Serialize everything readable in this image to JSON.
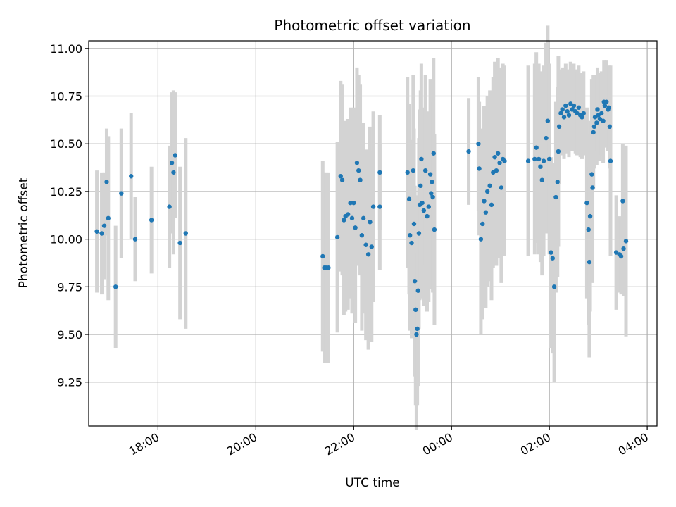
{
  "chart_data": {
    "type": "scatter",
    "title": "Photometric offset variation",
    "xlabel": "UTC time",
    "ylabel": "Photometric offset",
    "x_unit": "UTC clock time (hours past 00:00 of first day; values past 24 wrap)",
    "xlim": [
      "16:35",
      "04:12"
    ],
    "ylim": [
      9.02,
      11.04
    ],
    "x_ticks": [
      "18:00",
      "20:00",
      "22:00",
      "00:00",
      "02:00",
      "04:00"
    ],
    "y_ticks": [
      "9.25",
      "9.50",
      "9.75",
      "10.00",
      "10.25",
      "10.50",
      "10.75",
      "11.00"
    ],
    "grid": true,
    "colors": {
      "point": "#1f77b4",
      "errorbar": "#d3d3d3",
      "grid": "#b0b0b0"
    },
    "points": [
      [
        "16:45",
        10.04,
        0.32
      ],
      [
        "16:51",
        10.03,
        0.32
      ],
      [
        "16:54",
        10.07,
        0.28
      ],
      [
        "16:57",
        10.3,
        0.28
      ],
      [
        "16:59",
        10.11,
        0.43
      ],
      [
        "17:08",
        9.75,
        0.32
      ],
      [
        "17:15",
        10.24,
        0.34
      ],
      [
        "17:27",
        10.33,
        0.33
      ],
      [
        "17:32",
        10.0,
        0.22
      ],
      [
        "17:52",
        10.1,
        0.28
      ],
      [
        "18:14",
        10.17,
        0.32
      ],
      [
        "18:17",
        10.4,
        0.37
      ],
      [
        "18:19",
        10.35,
        0.43
      ],
      [
        "18:21",
        10.44,
        0.33
      ],
      [
        "18:27",
        9.98,
        0.4
      ],
      [
        "18:34",
        10.03,
        0.5
      ],
      [
        "21:22",
        9.91,
        0.5
      ],
      [
        "21:24",
        9.85,
        0.5
      ],
      [
        "21:26",
        9.85,
        0.5
      ],
      [
        "21:29",
        9.85,
        0.5
      ],
      [
        "21:40",
        10.01,
        0.5
      ],
      [
        "21:44",
        10.33,
        0.5
      ],
      [
        "21:46",
        10.31,
        0.5
      ],
      [
        "21:48",
        10.1,
        0.5
      ],
      [
        "21:50",
        10.12,
        0.5
      ],
      [
        "21:53",
        10.13,
        0.5
      ],
      [
        "21:56",
        10.19,
        0.5
      ],
      [
        "21:58",
        10.11,
        0.5
      ],
      [
        "22:00",
        10.19,
        0.5
      ],
      [
        "22:02",
        10.06,
        0.5
      ],
      [
        "22:04",
        10.4,
        0.5
      ],
      [
        "22:06",
        10.36,
        0.5
      ],
      [
        "22:08",
        10.31,
        0.5
      ],
      [
        "22:10",
        10.02,
        0.5
      ],
      [
        "22:12",
        10.11,
        0.5
      ],
      [
        "22:15",
        9.97,
        0.5
      ],
      [
        "22:18",
        9.92,
        0.5
      ],
      [
        "22:20",
        10.09,
        0.5
      ],
      [
        "22:22",
        9.96,
        0.5
      ],
      [
        "22:24",
        10.17,
        0.5
      ],
      [
        "22:32",
        10.17,
        0.33
      ],
      [
        "22:32",
        10.35,
        0.3
      ],
      [
        "23:06",
        10.35,
        0.5
      ],
      [
        "23:08",
        10.21,
        0.5
      ],
      [
        "23:09",
        10.02,
        0.5
      ],
      [
        "23:11",
        9.98,
        0.5
      ],
      [
        "23:13",
        10.36,
        0.5
      ],
      [
        "23:14",
        10.08,
        0.5
      ],
      [
        "23:15",
        9.78,
        0.5
      ],
      [
        "23:16",
        9.63,
        0.5
      ],
      [
        "23:17",
        9.5,
        0.5
      ],
      [
        "23:18",
        9.53,
        0.4
      ],
      [
        "23:19",
        9.73,
        0.5
      ],
      [
        "23:20",
        10.03,
        0.5
      ],
      [
        "23:21",
        10.18,
        0.5
      ],
      [
        "23:22",
        10.28,
        0.5
      ],
      [
        "23:23",
        10.42,
        0.5
      ],
      [
        "23:24",
        10.19,
        0.5
      ],
      [
        "23:26",
        10.15,
        0.5
      ],
      [
        "23:28",
        10.36,
        0.5
      ],
      [
        "23:30",
        10.12,
        0.5
      ],
      [
        "23:32",
        10.17,
        0.5
      ],
      [
        "23:34",
        10.34,
        0.5
      ],
      [
        "23:35",
        10.24,
        0.5
      ],
      [
        "23:36",
        10.3,
        0.5
      ],
      [
        "23:37",
        10.22,
        0.5
      ],
      [
        "23:38",
        10.45,
        0.5
      ],
      [
        "23:39",
        10.05,
        0.5
      ],
      [
        "00:21",
        10.46,
        0.28
      ],
      [
        "00:33",
        10.5,
        0.35
      ],
      [
        "00:34",
        10.37,
        0.35
      ],
      [
        "00:36",
        10.0,
        0.5
      ],
      [
        "00:38",
        10.08,
        0.5
      ],
      [
        "00:40",
        10.2,
        0.5
      ],
      [
        "00:42",
        10.14,
        0.5
      ],
      [
        "00:44",
        10.25,
        0.5
      ],
      [
        "00:47",
        10.28,
        0.5
      ],
      [
        "00:49",
        10.18,
        0.5
      ],
      [
        "00:51",
        10.35,
        0.5
      ],
      [
        "00:53",
        10.43,
        0.5
      ],
      [
        "00:55",
        10.36,
        0.5
      ],
      [
        "00:57",
        10.45,
        0.5
      ],
      [
        "00:59",
        10.4,
        0.5
      ],
      [
        "01:01",
        10.27,
        0.5
      ],
      [
        "01:03",
        10.42,
        0.5
      ],
      [
        "01:05",
        10.41,
        0.5
      ],
      [
        "01:34",
        10.41,
        0.5
      ],
      [
        "01:42",
        10.42,
        0.5
      ],
      [
        "01:44",
        10.48,
        0.5
      ],
      [
        "01:47",
        10.42,
        0.5
      ],
      [
        "01:49",
        10.38,
        0.5
      ],
      [
        "01:51",
        10.31,
        0.5
      ],
      [
        "01:53",
        10.41,
        0.5
      ],
      [
        "01:56",
        10.53,
        0.5
      ],
      [
        "01:58",
        10.62,
        0.5
      ],
      [
        "02:00",
        10.42,
        0.5
      ],
      [
        "02:02",
        9.93,
        0.5
      ],
      [
        "02:04",
        9.9,
        0.5
      ],
      [
        "02:06",
        9.75,
        0.5
      ],
      [
        "02:08",
        10.22,
        0.5
      ],
      [
        "02:10",
        10.3,
        0.5
      ],
      [
        "02:11",
        10.46,
        0.5
      ],
      [
        "02:12",
        10.59,
        0.3
      ],
      [
        "02:14",
        10.66,
        0.22
      ],
      [
        "02:16",
        10.68,
        0.22
      ],
      [
        "02:18",
        10.64,
        0.22
      ],
      [
        "02:20",
        10.7,
        0.22
      ],
      [
        "02:22",
        10.67,
        0.22
      ],
      [
        "02:24",
        10.65,
        0.22
      ],
      [
        "02:26",
        10.71,
        0.22
      ],
      [
        "02:28",
        10.68,
        0.22
      ],
      [
        "02:30",
        10.7,
        0.22
      ],
      [
        "02:32",
        10.67,
        0.22
      ],
      [
        "02:34",
        10.66,
        0.22
      ],
      [
        "02:36",
        10.69,
        0.22
      ],
      [
        "02:38",
        10.65,
        0.22
      ],
      [
        "02:40",
        10.64,
        0.22
      ],
      [
        "02:42",
        10.66,
        0.22
      ],
      [
        "02:46",
        10.19,
        0.5
      ],
      [
        "02:48",
        10.05,
        0.5
      ],
      [
        "02:49",
        9.88,
        0.5
      ],
      [
        "02:50",
        10.12,
        0.5
      ],
      [
        "02:52",
        10.34,
        0.5
      ],
      [
        "02:53",
        10.27,
        0.5
      ],
      [
        "02:54",
        10.56,
        0.3
      ],
      [
        "02:55",
        10.59,
        0.22
      ],
      [
        "02:56",
        10.64,
        0.22
      ],
      [
        "02:58",
        10.61,
        0.22
      ],
      [
        "02:59",
        10.68,
        0.22
      ],
      [
        "03:00",
        10.65,
        0.22
      ],
      [
        "03:02",
        10.63,
        0.22
      ],
      [
        "03:04",
        10.66,
        0.22
      ],
      [
        "03:06",
        10.62,
        0.22
      ],
      [
        "03:07",
        10.72,
        0.22
      ],
      [
        "03:08",
        10.7,
        0.22
      ],
      [
        "03:10",
        10.72,
        0.22
      ],
      [
        "03:12",
        10.68,
        0.22
      ],
      [
        "03:13",
        10.69,
        0.22
      ],
      [
        "03:14",
        10.59,
        0.22
      ],
      [
        "03:15",
        10.41,
        0.5
      ],
      [
        "03:22",
        9.93,
        0.3
      ],
      [
        "03:26",
        9.92,
        0.2
      ],
      [
        "03:28",
        9.91,
        0.2
      ],
      [
        "03:30",
        10.2,
        0.3
      ],
      [
        "03:31",
        9.95,
        0.25
      ],
      [
        "03:34",
        9.99,
        0.5
      ]
    ]
  }
}
